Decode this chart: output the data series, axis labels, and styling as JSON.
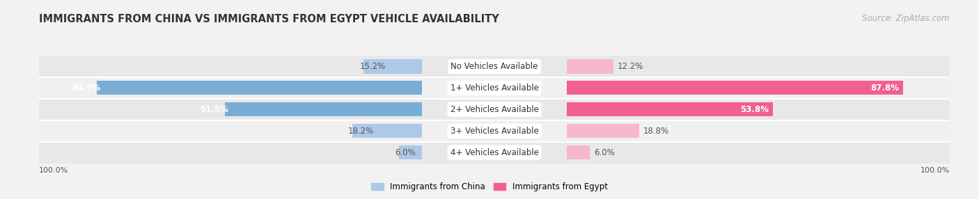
{
  "title": "IMMIGRANTS FROM CHINA VS IMMIGRANTS FROM EGYPT VEHICLE AVAILABILITY",
  "source": "Source: ZipAtlas.com",
  "categories": [
    "No Vehicles Available",
    "1+ Vehicles Available",
    "2+ Vehicles Available",
    "3+ Vehicles Available",
    "4+ Vehicles Available"
  ],
  "china_values": [
    15.2,
    84.9,
    51.5,
    18.2,
    6.0
  ],
  "egypt_values": [
    12.2,
    87.8,
    53.8,
    18.8,
    6.0
  ],
  "china_color_light": "#adc8e8",
  "china_color_dark": "#7badd4",
  "egypt_color_light": "#f8b8cc",
  "egypt_color_dark": "#f06090",
  "china_label": "Immigrants from China",
  "egypt_label": "Immigrants from Egypt",
  "background_color": "#f2f2f2",
  "row_bg_even": "#e8e8e8",
  "row_bg_odd": "#f0f0f0",
  "title_fontsize": 10.5,
  "source_fontsize": 8.5,
  "label_fontsize": 8.5,
  "value_fontsize": 8.5,
  "tick_fontsize": 8,
  "footer_label": "100.0%",
  "xlim_max": 100,
  "bar_height": 0.65
}
